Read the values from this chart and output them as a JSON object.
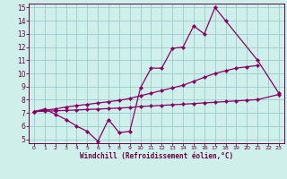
{
  "xlabel": "Windchill (Refroidissement éolien,°C)",
  "bg_color": "#cff0ea",
  "line_color": "#880066",
  "grid_color": "#99cccc",
  "xlim": [
    -0.5,
    23.5
  ],
  "ylim": [
    4.7,
    15.3
  ],
  "xticks": [
    0,
    1,
    2,
    3,
    4,
    5,
    6,
    7,
    8,
    9,
    10,
    11,
    12,
    13,
    14,
    15,
    16,
    17,
    18,
    19,
    20,
    21,
    22,
    23
  ],
  "yticks": [
    5,
    6,
    7,
    8,
    9,
    10,
    11,
    12,
    13,
    14,
    15
  ],
  "line1_x": [
    0,
    1,
    2,
    3,
    4,
    5,
    6,
    7,
    8,
    9,
    10,
    11,
    12,
    13,
    14,
    15,
    16,
    17,
    18,
    21,
    23
  ],
  "line1_y": [
    7.1,
    7.3,
    6.9,
    6.5,
    6.0,
    5.6,
    4.85,
    6.5,
    5.5,
    5.6,
    8.9,
    10.4,
    10.4,
    11.9,
    12.0,
    13.6,
    13.0,
    15.0,
    14.0,
    11.0,
    8.5
  ],
  "line2_x": [
    0,
    1,
    2,
    3,
    4,
    5,
    6,
    7,
    8,
    9,
    10,
    11,
    12,
    13,
    14,
    15,
    16,
    17,
    18,
    19,
    20,
    21
  ],
  "line2_y": [
    7.1,
    7.2,
    7.3,
    7.45,
    7.55,
    7.65,
    7.75,
    7.85,
    7.95,
    8.1,
    8.3,
    8.5,
    8.7,
    8.9,
    9.1,
    9.4,
    9.7,
    10.0,
    10.2,
    10.4,
    10.5,
    10.6
  ],
  "line3_x": [
    0,
    1,
    2,
    3,
    4,
    5,
    6,
    7,
    8,
    9,
    10,
    11,
    12,
    13,
    14,
    15,
    16,
    17,
    18,
    19,
    20,
    21,
    23
  ],
  "line3_y": [
    7.1,
    7.13,
    7.16,
    7.19,
    7.22,
    7.26,
    7.29,
    7.33,
    7.37,
    7.41,
    7.49,
    7.53,
    7.57,
    7.62,
    7.66,
    7.71,
    7.76,
    7.81,
    7.86,
    7.91,
    7.96,
    8.01,
    8.4
  ]
}
